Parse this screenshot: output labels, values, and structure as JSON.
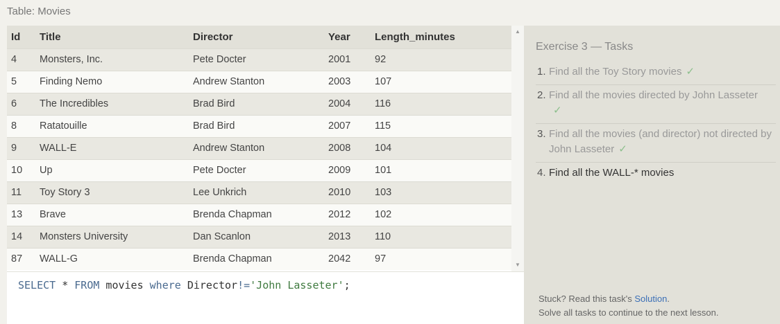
{
  "table_title": "Table: Movies",
  "table": {
    "columns": [
      "Id",
      "Title",
      "Director",
      "Year",
      "Length_minutes"
    ],
    "rows": [
      [
        "4",
        "Monsters, Inc.",
        "Pete Docter",
        "2001",
        "92"
      ],
      [
        "5",
        "Finding Nemo",
        "Andrew Stanton",
        "2003",
        "107"
      ],
      [
        "6",
        "The Incredibles",
        "Brad Bird",
        "2004",
        "116"
      ],
      [
        "8",
        "Ratatouille",
        "Brad Bird",
        "2007",
        "115"
      ],
      [
        "9",
        "WALL-E",
        "Andrew Stanton",
        "2008",
        "104"
      ],
      [
        "10",
        "Up",
        "Pete Docter",
        "2009",
        "101"
      ],
      [
        "11",
        "Toy Story 3",
        "Lee Unkrich",
        "2010",
        "103"
      ],
      [
        "13",
        "Brave",
        "Brenda Chapman",
        "2012",
        "102"
      ],
      [
        "14",
        "Monsters University",
        "Dan Scanlon",
        "2013",
        "110"
      ],
      [
        "87",
        "WALL-G",
        "Brenda Chapman",
        "2042",
        "97"
      ]
    ]
  },
  "editor": {
    "kw_select": "SELECT",
    "star": " * ",
    "kw_from": "FROM",
    "table_name": " movies ",
    "kw_where": "where",
    "condition": " Director",
    "operator": "!=",
    "value": "'John Lasseter'",
    "terminator": ";"
  },
  "panel": {
    "title": "Exercise 3 — Tasks",
    "tasks": [
      {
        "num": "1.",
        "text": "Find all the Toy Story movies",
        "done": "✓"
      },
      {
        "num": "2.",
        "text": "Find all the movies directed by John Lasseter",
        "done": "✓"
      },
      {
        "num": "3.",
        "text": "Find all the movies (and director) not directed by John Lasseter",
        "done": "✓"
      },
      {
        "num": "4.",
        "text": "Find all the WALL-* movies",
        "done": ""
      }
    ],
    "footer_prefix": "Stuck? Read this task's ",
    "footer_link": "Solution",
    "footer_suffix": ".",
    "footer_line2": "Solve all tasks to continue to the next lesson."
  },
  "colors": {
    "header_bg": "#e2e1d9",
    "row_odd": "#e9e8e1",
    "row_even": "#fafaf7",
    "check": "#8cbf8c",
    "link": "#3b6fb6"
  },
  "icons": {
    "scroll_up": "▲",
    "scroll_down": "▼"
  }
}
